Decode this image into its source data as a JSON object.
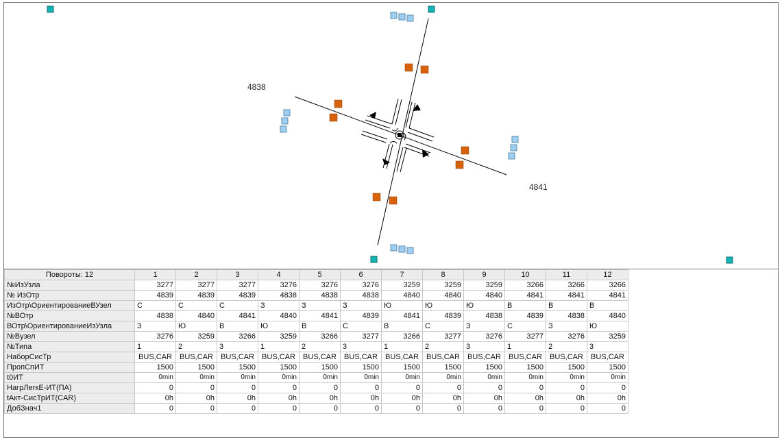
{
  "map": {
    "labels": [
      {
        "id": "segment-label-4838",
        "text": "4838"
      },
      {
        "id": "segment-label-4841",
        "text": "4841"
      }
    ],
    "colors": {
      "zone_square": "#15b4b4",
      "node_square": "#9fcff0",
      "connector_square": "#d8620c",
      "line": "#000000"
    }
  },
  "grid": {
    "header_title": "Повороты: 12",
    "columns": [
      "1",
      "2",
      "3",
      "4",
      "5",
      "6",
      "7",
      "8",
      "9",
      "10",
      "11",
      "12"
    ],
    "rows": [
      {
        "label": "№ИзУзла",
        "align": "num",
        "values": [
          "3277",
          "3277",
          "3277",
          "3276",
          "3276",
          "3276",
          "3259",
          "3259",
          "3259",
          "3266",
          "3266",
          "3266"
        ]
      },
      {
        "label": "№ ИзОтр",
        "align": "num",
        "values": [
          "4839",
          "4839",
          "4839",
          "4838",
          "4838",
          "4838",
          "4840",
          "4840",
          "4840",
          "4841",
          "4841",
          "4841"
        ]
      },
      {
        "label": "ИзОтр\\ОриентированиеВУзел",
        "align": "txt",
        "values": [
          "С",
          "С",
          "С",
          "З",
          "З",
          "З",
          "Ю",
          "Ю",
          "Ю",
          "В",
          "В",
          "В"
        ]
      },
      {
        "label": "№ВОтр",
        "align": "num",
        "values": [
          "4838",
          "4840",
          "4841",
          "4840",
          "4841",
          "4839",
          "4841",
          "4839",
          "4838",
          "4839",
          "4838",
          "4840"
        ]
      },
      {
        "label": "ВОтр\\ОриентированиеИзУзла",
        "align": "txt",
        "values": [
          "З",
          "Ю",
          "В",
          "Ю",
          "В",
          "С",
          "В",
          "С",
          "З",
          "С",
          "З",
          "Ю"
        ]
      },
      {
        "label": "№Вузел",
        "align": "num",
        "values": [
          "3276",
          "3259",
          "3266",
          "3259",
          "3266",
          "3277",
          "3266",
          "3277",
          "3276",
          "3277",
          "3276",
          "3259"
        ]
      },
      {
        "label": "№Типа",
        "align": "txt",
        "values": [
          "1",
          "2",
          "3",
          "1",
          "2",
          "3",
          "1",
          "2",
          "3",
          "1",
          "2",
          "3"
        ]
      },
      {
        "label": "НаборСисТр",
        "align": "ctr",
        "values": [
          "BUS,CAR",
          "BUS,CAR",
          "BUS,CAR",
          "BUS,CAR",
          "BUS,CAR",
          "BUS,CAR",
          "BUS,CAR",
          "BUS,CAR",
          "BUS,CAR",
          "BUS,CAR",
          "BUS,CAR",
          "BUS,CAR"
        ]
      },
      {
        "label": "ПропСпИТ",
        "align": "num",
        "values": [
          "1500",
          "1500",
          "1500",
          "1500",
          "1500",
          "1500",
          "1500",
          "1500",
          "1500",
          "1500",
          "1500",
          "1500"
        ]
      },
      {
        "label": "t0ИТ",
        "align": "num small",
        "values": [
          "0min",
          "0min",
          "0min",
          "0min",
          "0min",
          "0min",
          "0min",
          "0min",
          "0min",
          "0min",
          "0min",
          "0min"
        ]
      },
      {
        "label": "НагрЛегкЕ-ИТ(ПА)",
        "align": "num",
        "values": [
          "0",
          "0",
          "0",
          "0",
          "0",
          "0",
          "0",
          "0",
          "0",
          "0",
          "0",
          "0"
        ]
      },
      {
        "label": "tАкт-СисТрИТ(CAR)",
        "align": "num",
        "values": [
          "0h",
          "0h",
          "0h",
          "0h",
          "0h",
          "0h",
          "0h",
          "0h",
          "0h",
          "0h",
          "0h",
          "0h"
        ]
      },
      {
        "label": "ДобЗнач1",
        "align": "num",
        "values": [
          "0",
          "0",
          "0",
          "0",
          "0",
          "0",
          "0",
          "0",
          "0",
          "0",
          "0",
          "0"
        ]
      }
    ]
  }
}
